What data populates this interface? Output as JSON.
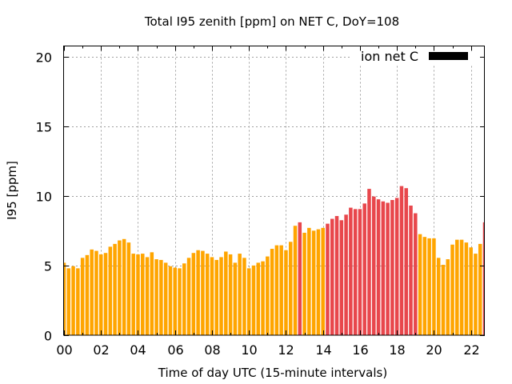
{
  "chart_data": {
    "type": "bar",
    "title": "Total I95 zenith [ppm] on NET C, DoY=108",
    "xlabel": "Time of day UTC (15-minute intervals)",
    "ylabel": "I95 [ppm]",
    "xlim": [
      0,
      22.75
    ],
    "ylim": [
      0,
      20.75
    ],
    "x_step_hours": 0.25,
    "xticks": [
      0,
      2,
      4,
      6,
      8,
      10,
      12,
      14,
      16,
      18,
      20,
      22
    ],
    "xtick_labels": [
      "00",
      "02",
      "04",
      "06",
      "08",
      "10",
      "12",
      "14",
      "16",
      "18",
      "20",
      "22"
    ],
    "yticks": [
      0,
      5,
      10,
      15,
      20
    ],
    "ytick_labels": [
      "0",
      "5",
      "10",
      "15",
      "20"
    ],
    "grid": true,
    "legend": {
      "placement": "top-right",
      "entries": [
        {
          "label": "ion net C",
          "color": "#000000"
        }
      ]
    },
    "colors": {
      "normal": "#ffa500",
      "high": "#e8474c"
    },
    "values": [
      5.2,
      4.8,
      4.95,
      4.8,
      5.55,
      5.75,
      6.15,
      6.05,
      5.8,
      5.9,
      6.35,
      6.55,
      6.8,
      6.9,
      6.65,
      5.85,
      5.8,
      5.85,
      5.6,
      5.95,
      5.45,
      5.4,
      5.2,
      4.95,
      4.85,
      4.8,
      5.15,
      5.55,
      5.9,
      6.1,
      6.05,
      5.85,
      5.6,
      5.4,
      5.6,
      6.0,
      5.8,
      5.2,
      5.85,
      5.55,
      4.8,
      5.0,
      5.2,
      5.3,
      5.65,
      6.2,
      6.45,
      6.45,
      6.1,
      6.7,
      7.85,
      8.1,
      7.35,
      7.7,
      7.5,
      7.6,
      7.7,
      8.0,
      8.35,
      8.55,
      8.25,
      8.65,
      9.15,
      9.05,
      9.05,
      9.45,
      10.5,
      9.95,
      9.75,
      9.6,
      9.5,
      9.7,
      9.85,
      10.7,
      10.55,
      9.3,
      8.75,
      7.25,
      7.05,
      6.95,
      6.95,
      5.55,
      5.05,
      5.45,
      6.5,
      6.85,
      6.85,
      6.65,
      6.3,
      5.85,
      6.55,
      8.1
    ],
    "high_flags": [
      0,
      0,
      0,
      0,
      0,
      0,
      0,
      0,
      0,
      0,
      0,
      0,
      0,
      0,
      0,
      0,
      0,
      0,
      0,
      0,
      0,
      0,
      0,
      0,
      0,
      0,
      0,
      0,
      0,
      0,
      0,
      0,
      0,
      0,
      0,
      0,
      0,
      0,
      0,
      0,
      0,
      0,
      0,
      0,
      0,
      0,
      0,
      0,
      0,
      0,
      0,
      1,
      0,
      0,
      0,
      0,
      0,
      1,
      1,
      1,
      1,
      1,
      1,
      1,
      1,
      1,
      1,
      1,
      1,
      1,
      1,
      1,
      1,
      1,
      1,
      1,
      1,
      0,
      0,
      0,
      0,
      0,
      0,
      0,
      0,
      0,
      0,
      0,
      0,
      0,
      0,
      1
    ]
  }
}
